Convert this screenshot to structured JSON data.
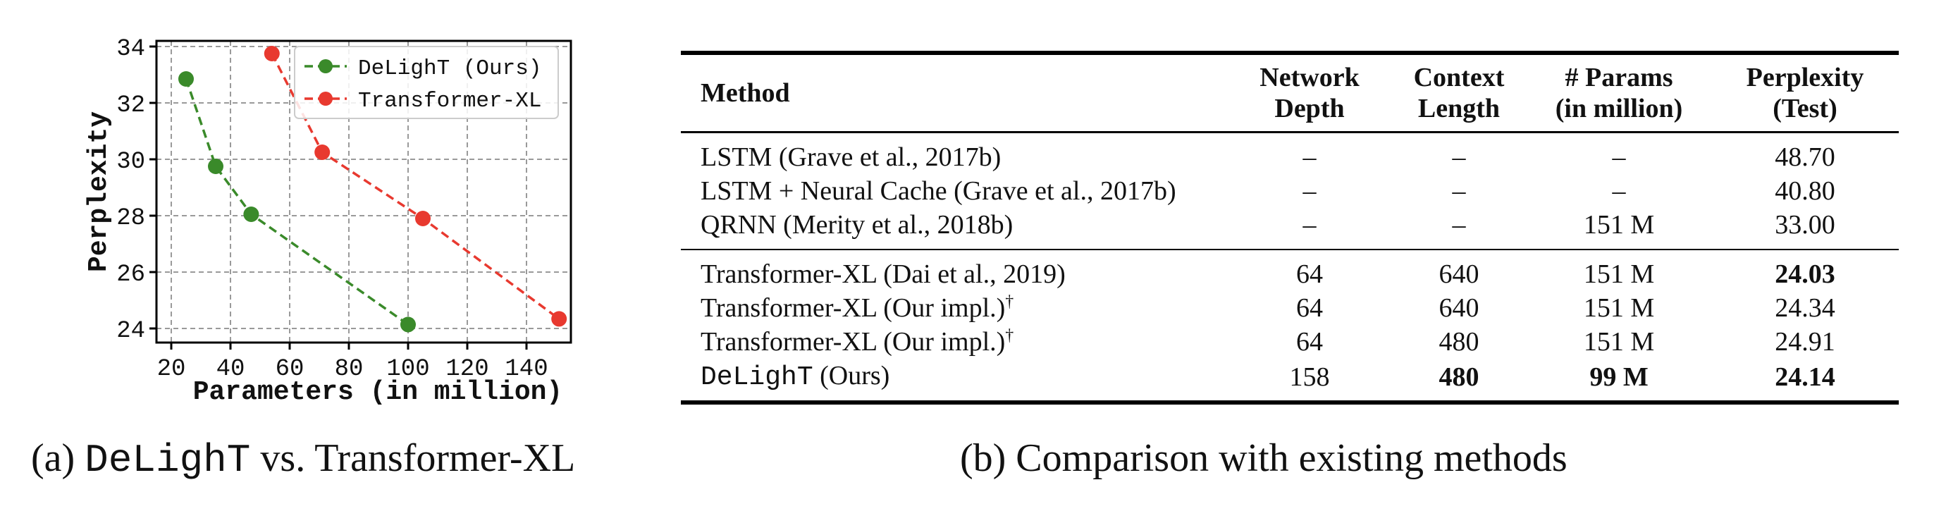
{
  "chart_data": {
    "type": "line",
    "xlabel": "Parameters (in million)",
    "ylabel": "Perplexity",
    "xlim": [
      15,
      155
    ],
    "ylim": [
      23.5,
      34.2
    ],
    "xticks": [
      20,
      40,
      60,
      80,
      100,
      120,
      140
    ],
    "yticks": [
      24,
      26,
      28,
      30,
      32,
      34
    ],
    "grid": true,
    "legend_position": "top-right",
    "series": [
      {
        "name": "DeLighT (Ours)",
        "color": "#3a8a2a",
        "x": [
          25,
          35,
          47,
          100
        ],
        "y": [
          32.85,
          29.75,
          28.05,
          24.14
        ]
      },
      {
        "name": "Transformer-XL",
        "color": "#e8392f",
        "x": [
          54,
          71,
          105,
          151
        ],
        "y": [
          33.75,
          30.25,
          27.9,
          24.34
        ]
      }
    ]
  },
  "captions": {
    "a_prefix": "(a) ",
    "a_mono": "DeLighT",
    "a_suffix": " vs. Transformer-XL",
    "b": "(b) Comparison with existing methods"
  },
  "table": {
    "headers": {
      "method": "Method",
      "depth_1": "Network",
      "depth_2": "Depth",
      "context_1": "Context",
      "context_2": "Length",
      "params_1": "# Params",
      "params_2": "(in million)",
      "ppl_1": "Perplexity",
      "ppl_2": "(Test)"
    },
    "group1": [
      {
        "method": "LSTM (Grave et al., 2017b)",
        "depth": "–",
        "context": "–",
        "params": "–",
        "ppl": "48.70"
      },
      {
        "method": "LSTM + Neural Cache (Grave et al., 2017b)",
        "depth": "–",
        "context": "–",
        "params": "–",
        "ppl": "40.80"
      },
      {
        "method": "QRNN (Merity et al., 2018b)",
        "depth": "–",
        "context": "–",
        "params": "151 M",
        "ppl": "33.00"
      }
    ],
    "group2": [
      {
        "method": "Transformer-XL (Dai et al., 2019)",
        "dagger": "",
        "depth": "64",
        "context": "640",
        "params": "151 M",
        "ppl": "24.03"
      },
      {
        "method": "Transformer-XL (Our impl.)",
        "dagger": "†",
        "depth": "64",
        "context": "640",
        "params": "151 M",
        "ppl": "24.34"
      },
      {
        "method": "Transformer-XL (Our impl.)",
        "dagger": "†",
        "depth": "64",
        "context": "480",
        "params": "151 M",
        "ppl": "24.91"
      }
    ],
    "ours": {
      "method_mono": "DeLighT",
      "method_rest": " (Ours)",
      "depth": "158",
      "context": "480",
      "params": "99 M",
      "ppl": "24.14"
    }
  }
}
